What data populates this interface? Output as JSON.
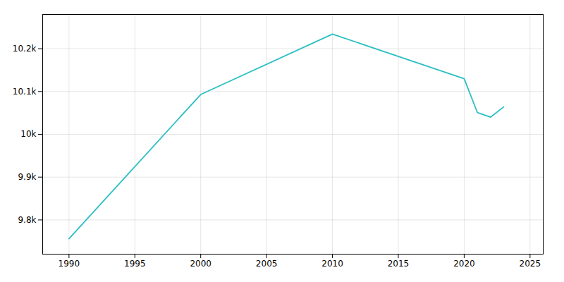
{
  "chart_data": {
    "type": "line",
    "x": [
      1990,
      2000,
      2010,
      2020,
      2021,
      2022,
      2023
    ],
    "values": [
      9756,
      10093,
      10234,
      10130,
      10051,
      10040,
      10064
    ],
    "color": "#2bbfc4",
    "xlim": [
      1988,
      2026
    ],
    "ylim": [
      9720,
      10280
    ],
    "xticks": [
      1990,
      1995,
      2000,
      2005,
      2010,
      2015,
      2020,
      2025
    ],
    "yticks": [
      {
        "value": 9800,
        "label": "9.8k"
      },
      {
        "value": 9900,
        "label": "9.9k"
      },
      {
        "value": 10000,
        "label": "10k"
      },
      {
        "value": 10100,
        "label": "10.1k"
      },
      {
        "value": 10200,
        "label": "10.2k"
      }
    ],
    "grid": true
  }
}
